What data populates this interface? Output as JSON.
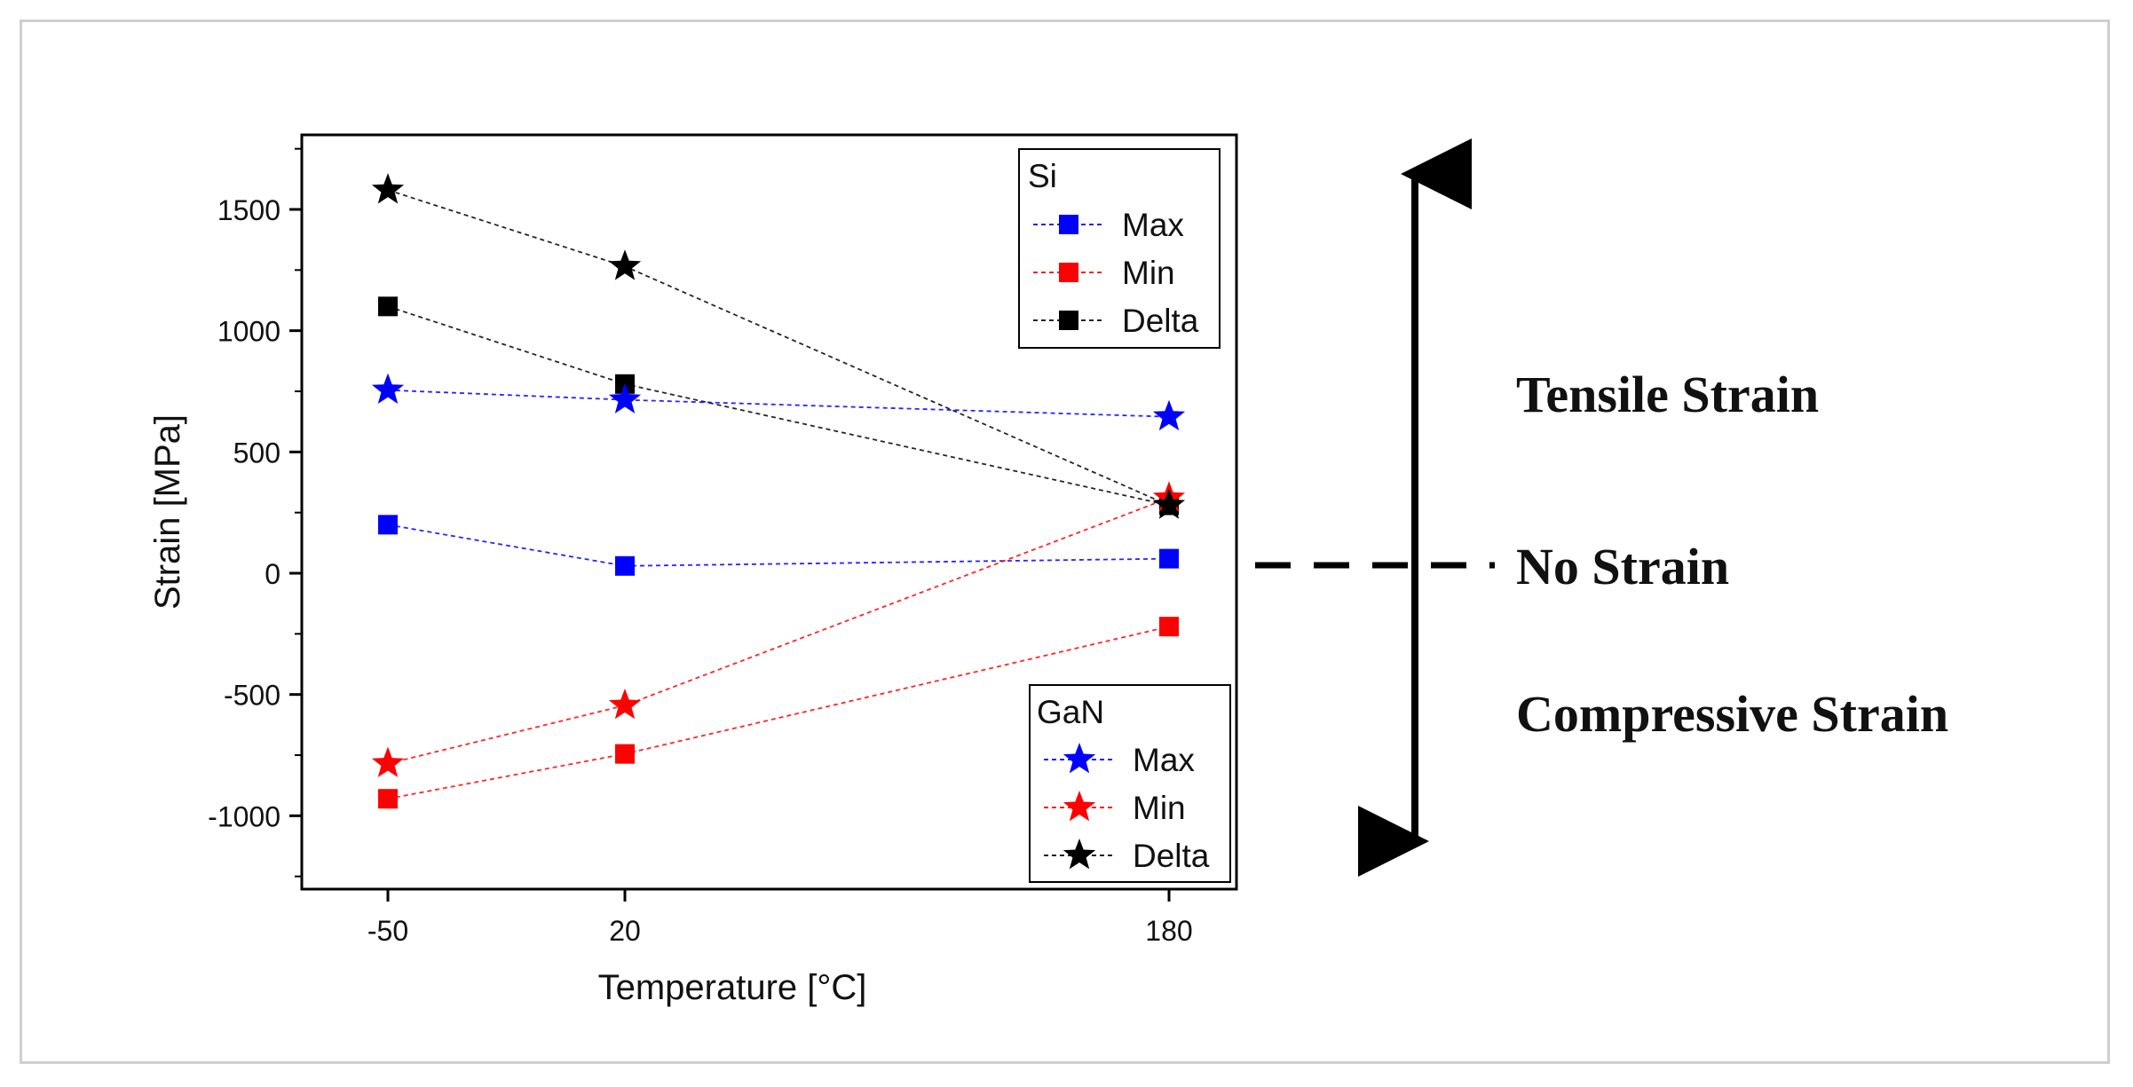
{
  "chart_data": {
    "type": "line",
    "xlabel": "Temperature [°C]",
    "ylabel": "Strain [MPa]",
    "x": [
      -50,
      20,
      180
    ],
    "x_tick_labels": [
      "-50",
      "20",
      "180"
    ],
    "ylim": [
      -1300,
      1800
    ],
    "y_ticks": [
      -1000,
      -500,
      0,
      500,
      1000,
      1500
    ],
    "y_tick_labels": [
      "-1000",
      "-500",
      "0",
      "500",
      "1000",
      "1500"
    ],
    "series": [
      {
        "group": "Si",
        "name": "Max",
        "marker": "square",
        "color": "#0000ff",
        "values": [
          200,
          30,
          60
        ]
      },
      {
        "group": "Si",
        "name": "Min",
        "marker": "square",
        "color": "#ff0000",
        "values": [
          -930,
          -745,
          -220
        ]
      },
      {
        "group": "Si",
        "name": "Delta",
        "marker": "square",
        "color": "#000000",
        "values": [
          1100,
          780,
          280
        ]
      },
      {
        "group": "GaN",
        "name": "Max",
        "marker": "star",
        "color": "#0000ff",
        "values": [
          755,
          715,
          645
        ]
      },
      {
        "group": "GaN",
        "name": "Min",
        "marker": "star",
        "color": "#ff0000",
        "values": [
          -785,
          -545,
          310
        ]
      },
      {
        "group": "GaN",
        "name": "Delta",
        "marker": "star",
        "color": "#000000",
        "values": [
          1580,
          1265,
          280
        ]
      }
    ],
    "legends": [
      {
        "title": "Si",
        "entries": [
          "Max",
          "Min",
          "Delta"
        ],
        "placement": "top-right"
      },
      {
        "title": "GaN",
        "entries": [
          "Max",
          "Min",
          "Delta"
        ],
        "placement": "bottom-right"
      }
    ],
    "annotations": {
      "tensile": "Tensile Strain",
      "none": "No Strain",
      "compressive": "Compressive Strain"
    }
  }
}
